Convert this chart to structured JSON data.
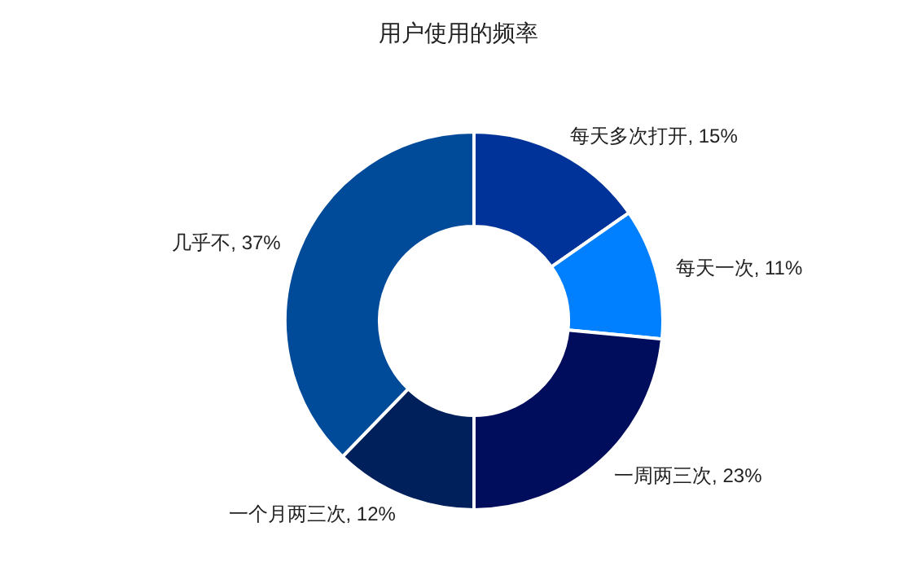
{
  "chart_data": {
    "type": "donut",
    "title": "用户使用的频率",
    "categories": [
      "每天多次打开",
      "每天一次",
      "一周两三次",
      "一个月两三次",
      "几乎不"
    ],
    "values": [
      15,
      11,
      23,
      12,
      37
    ],
    "value_labels": [
      ", 15%",
      ", 11%",
      ", 23%",
      ", 12%",
      ", 37%"
    ],
    "colors": [
      "#003399",
      "#0080ff",
      "#000c5c",
      "#00205b",
      "#004a9a"
    ],
    "legend": false
  }
}
